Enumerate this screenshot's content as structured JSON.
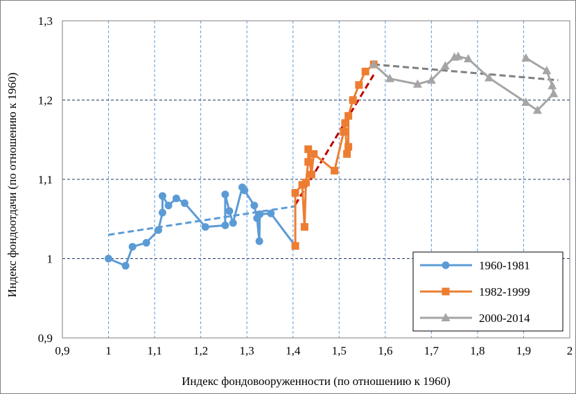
{
  "chart_data": {
    "type": "line",
    "title": "",
    "xlabel": "Индекс фондовооруженности (по отношению к 1960)",
    "ylabel": "Индекс фондоотдачи (по отношению к 1960)",
    "xlim": [
      0.9,
      2
    ],
    "ylim": [
      0.9,
      1.3
    ],
    "x_ticks": [
      "0,9",
      "1",
      "1,1",
      "1,2",
      "1,3",
      "1,4",
      "1,5",
      "1,6",
      "1,7",
      "1,8",
      "1,9",
      "2"
    ],
    "y_ticks": [
      "0,9",
      "1",
      "1,1",
      "1,2",
      "1,3"
    ],
    "x_tick_values": [
      0.9,
      1.0,
      1.1,
      1.2,
      1.3,
      1.4,
      1.5,
      1.6,
      1.7,
      1.8,
      1.9,
      2.0
    ],
    "y_tick_values": [
      0.9,
      1.0,
      1.1,
      1.2,
      1.3
    ],
    "grid": true,
    "grid_style": "dashed",
    "legend_position": "bottom-right",
    "series": [
      {
        "name": "1960-1981",
        "color": "#5b9bd5",
        "marker": "circle",
        "points": [
          [
            1.0,
            1.0
          ],
          [
            1.037,
            0.991
          ],
          [
            1.052,
            1.015
          ],
          [
            1.082,
            1.02
          ],
          [
            1.108,
            1.036
          ],
          [
            1.117,
            1.058
          ],
          [
            1.117,
            1.079
          ],
          [
            1.13,
            1.067
          ],
          [
            1.147,
            1.076
          ],
          [
            1.165,
            1.07
          ],
          [
            1.21,
            1.04
          ],
          [
            1.253,
            1.042
          ],
          [
            1.253,
            1.081
          ],
          [
            1.262,
            1.06
          ],
          [
            1.27,
            1.045
          ],
          [
            1.29,
            1.09
          ],
          [
            1.295,
            1.086
          ],
          [
            1.316,
            1.067
          ],
          [
            1.322,
            1.051
          ],
          [
            1.327,
            1.022
          ],
          [
            1.328,
            1.056
          ],
          [
            1.352,
            1.057
          ],
          [
            1.405,
            1.016
          ]
        ]
      },
      {
        "name": "1982-1999",
        "color": "#ed7d31",
        "marker": "square",
        "points": [
          [
            1.405,
            1.016
          ],
          [
            1.405,
            1.083
          ],
          [
            1.42,
            1.093
          ],
          [
            1.425,
            1.04
          ],
          [
            1.428,
            1.096
          ],
          [
            1.433,
            1.122
          ],
          [
            1.433,
            1.138
          ],
          [
            1.44,
            1.106
          ],
          [
            1.445,
            1.132
          ],
          [
            1.49,
            1.111
          ],
          [
            1.51,
            1.16
          ],
          [
            1.513,
            1.171
          ],
          [
            1.517,
            1.132
          ],
          [
            1.52,
            1.141
          ],
          [
            1.52,
            1.18
          ],
          [
            1.53,
            1.2
          ],
          [
            1.543,
            1.219
          ],
          [
            1.557,
            1.236
          ],
          [
            1.575,
            1.245
          ]
        ]
      },
      {
        "name": "2000-2014",
        "color": "#a5a5a5",
        "marker": "triangle",
        "points": [
          [
            1.575,
            1.245
          ],
          [
            1.61,
            1.227
          ],
          [
            1.67,
            1.22
          ],
          [
            1.7,
            1.225
          ],
          [
            1.73,
            1.243
          ],
          [
            1.75,
            1.254
          ],
          [
            1.758,
            1.255
          ],
          [
            1.78,
            1.252
          ],
          [
            1.825,
            1.228
          ],
          [
            1.905,
            1.197
          ],
          [
            1.93,
            1.187
          ],
          [
            1.965,
            1.208
          ],
          [
            1.962,
            1.218
          ],
          [
            1.95,
            1.237
          ],
          [
            1.905,
            1.253
          ]
        ]
      }
    ],
    "trendlines": [
      {
        "series": "1960-1981",
        "color": "#5b9bd5",
        "from": [
          1.0,
          1.03
        ],
        "to": [
          1.405,
          1.066
        ]
      },
      {
        "series": "1982-1999",
        "color": "#c00000",
        "from": [
          1.405,
          1.068
        ],
        "to": [
          1.575,
          1.232
        ]
      },
      {
        "series": "2000-2014",
        "color": "#7f7f7f",
        "from": [
          1.575,
          1.245
        ],
        "to": [
          1.975,
          1.225
        ]
      }
    ]
  }
}
